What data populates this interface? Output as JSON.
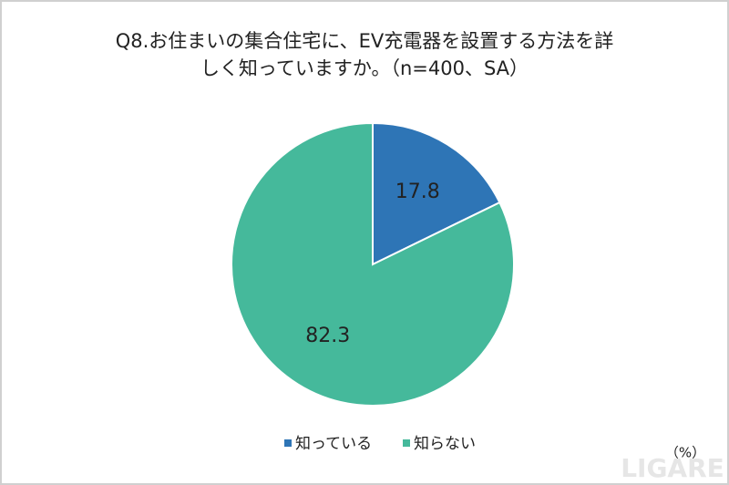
{
  "chart_data": {
    "type": "pie",
    "title": [
      "Q8.お住まいの集合住宅に、EV充電器を設置する方法を詳",
      "しく知っていますか。（n=400、SA）"
    ],
    "categories": [
      "知っている",
      "知らない"
    ],
    "values": [
      17.8,
      82.3
    ],
    "colors": [
      "#2e75b6",
      "#45b99b"
    ],
    "unit_note": "（%）",
    "watermark": "LIGARE",
    "legend": "bottom"
  }
}
